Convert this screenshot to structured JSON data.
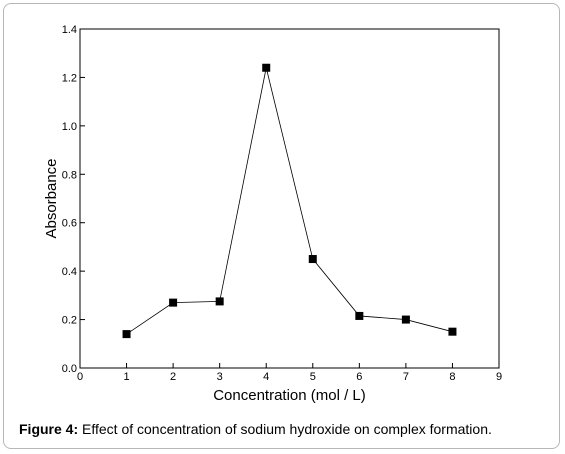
{
  "chart_data": {
    "type": "line",
    "title": "",
    "xlabel": "Concentration (mol / L)",
    "ylabel": "Absorbance",
    "xlim": [
      0,
      9
    ],
    "ylim": [
      0.0,
      1.4
    ],
    "x_ticks": [
      "0",
      "1",
      "2",
      "3",
      "4",
      "5",
      "6",
      "7",
      "8",
      "9"
    ],
    "y_ticks": [
      "0.0",
      "0.2",
      "0.4",
      "0.6",
      "0.8",
      "1.0",
      "1.2",
      "1.4"
    ],
    "grid": false,
    "marker": "square",
    "line_color": "#000000",
    "x": [
      1,
      2,
      3,
      4,
      5,
      6,
      7,
      8
    ],
    "y": [
      0.14,
      0.27,
      0.275,
      1.24,
      0.45,
      0.215,
      0.2,
      0.15
    ]
  },
  "caption": {
    "label": "Figure 4:",
    "text": " Effect of concentration of sodium hydroxide on complex formation."
  }
}
